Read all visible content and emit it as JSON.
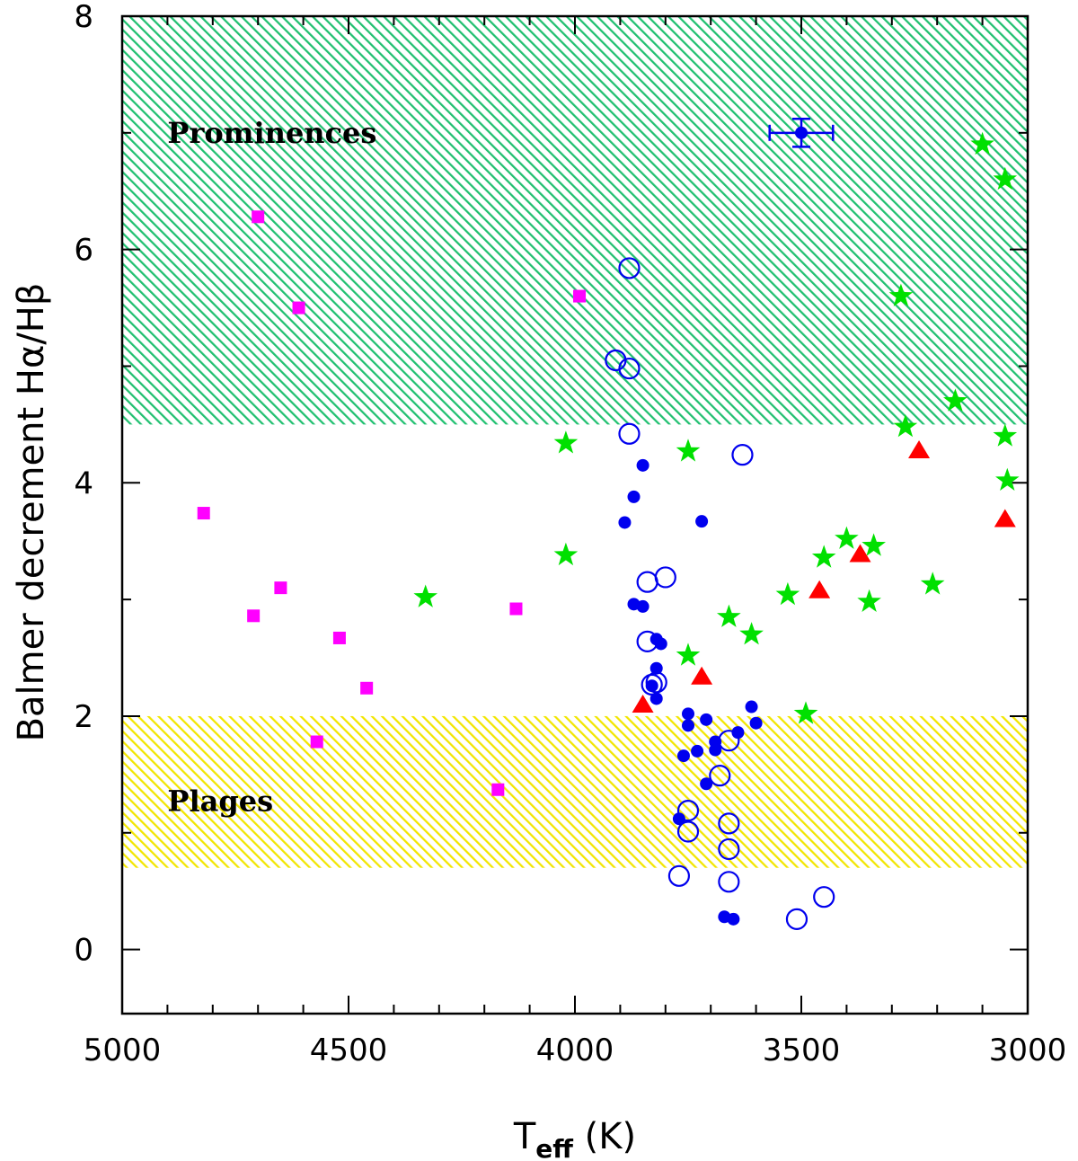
{
  "chart_data": {
    "type": "scatter",
    "xlabel": {
      "main": "T",
      "sub": "eff",
      "unit": " (K)"
    },
    "ylabel": "Balmer decrement Hα/Hβ",
    "xlim": [
      5000,
      3000
    ],
    "ylim": [
      -0.55,
      8
    ],
    "x_ticks": [
      5000,
      4500,
      4000,
      3500,
      3000
    ],
    "y_ticks": [
      0,
      2,
      4,
      6,
      8
    ],
    "x_minor_ticks": [
      4900,
      4800,
      4700,
      4600,
      4400,
      4300,
      4200,
      4100,
      3900,
      3800,
      3700,
      3600,
      3400,
      3300,
      3200,
      3100
    ],
    "y_minor_ticks": [
      1,
      3,
      5,
      7
    ],
    "regions": [
      {
        "name": "Prominences",
        "y_from": 4.5,
        "y_to": 8,
        "color": "#20c070",
        "label_x": 4900,
        "label_y": 7.0
      },
      {
        "name": "Plages",
        "y_from": 0.7,
        "y_to": 2.0,
        "color": "#f2e600",
        "label_x": 4900,
        "label_y": 1.27
      }
    ],
    "series": [
      {
        "marker": "square",
        "color": "#ff00ff",
        "points": [
          [
            4700,
            6.28
          ],
          [
            4610,
            5.5
          ],
          [
            3990,
            5.6
          ],
          [
            4820,
            3.74
          ],
          [
            4650,
            3.1
          ],
          [
            4710,
            2.86
          ],
          [
            4130,
            2.92
          ],
          [
            4520,
            2.67
          ],
          [
            4460,
            2.24
          ],
          [
            4570,
            1.78
          ],
          [
            4170,
            1.37
          ]
        ]
      },
      {
        "marker": "star",
        "color": "#00e000",
        "points": [
          [
            3100,
            6.9
          ],
          [
            3050,
            6.6
          ],
          [
            3280,
            5.6
          ],
          [
            3160,
            4.7
          ],
          [
            3270,
            4.48
          ],
          [
            3050,
            4.4
          ],
          [
            4020,
            4.34
          ],
          [
            3750,
            4.27
          ],
          [
            3045,
            4.02
          ],
          [
            4020,
            3.38
          ],
          [
            3400,
            3.52
          ],
          [
            3340,
            3.46
          ],
          [
            3450,
            3.36
          ],
          [
            4330,
            3.02
          ],
          [
            3210,
            3.13
          ],
          [
            3530,
            3.04
          ],
          [
            3350,
            2.98
          ],
          [
            3660,
            2.85
          ],
          [
            3610,
            2.7
          ],
          [
            3750,
            2.52
          ],
          [
            3490,
            2.02
          ]
        ]
      },
      {
        "marker": "triangle",
        "color": "#ff0000",
        "points": [
          [
            3240,
            4.28
          ],
          [
            3050,
            3.69
          ],
          [
            3370,
            3.39
          ],
          [
            3460,
            3.08
          ],
          [
            3720,
            2.34
          ],
          [
            3850,
            2.1
          ]
        ]
      },
      {
        "marker": "filled-circle",
        "color": "#0000ee",
        "points": [
          [
            3850,
            4.15
          ],
          [
            3870,
            3.88
          ],
          [
            3890,
            3.66
          ],
          [
            3720,
            3.67
          ],
          [
            3870,
            2.96
          ],
          [
            3850,
            2.94
          ],
          [
            3820,
            2.66
          ],
          [
            3810,
            2.62
          ],
          [
            3820,
            2.41
          ],
          [
            3830,
            2.26
          ],
          [
            3820,
            2.15
          ],
          [
            3750,
            2.02
          ],
          [
            3710,
            1.97
          ],
          [
            3610,
            2.08
          ],
          [
            3600,
            1.94
          ],
          [
            3750,
            1.92
          ],
          [
            3640,
            1.86
          ],
          [
            3690,
            1.78
          ],
          [
            3730,
            1.7
          ],
          [
            3690,
            1.71
          ],
          [
            3760,
            1.66
          ],
          [
            3710,
            1.42
          ],
          [
            3770,
            1.12
          ],
          [
            3670,
            0.28
          ],
          [
            3650,
            0.26
          ]
        ]
      },
      {
        "marker": "open-circle",
        "color": "#0000ee",
        "points": [
          [
            3880,
            5.84
          ],
          [
            3910,
            5.05
          ],
          [
            3880,
            4.98
          ],
          [
            3880,
            4.42
          ],
          [
            3630,
            4.24
          ],
          [
            3800,
            3.19
          ],
          [
            3840,
            3.15
          ],
          [
            3840,
            2.64
          ],
          [
            3830,
            2.27
          ],
          [
            3820,
            2.29
          ],
          [
            3660,
            1.79
          ],
          [
            3680,
            1.49
          ],
          [
            3750,
            1.19
          ],
          [
            3750,
            1.01
          ],
          [
            3660,
            1.08
          ],
          [
            3660,
            0.86
          ],
          [
            3660,
            0.58
          ],
          [
            3770,
            0.63
          ],
          [
            3450,
            0.45
          ],
          [
            3510,
            0.26
          ]
        ]
      }
    ],
    "highlight": {
      "x": 3500,
      "y": 7.0,
      "x_err": 70,
      "y_err": 0.12,
      "color": "#0000ee"
    }
  }
}
